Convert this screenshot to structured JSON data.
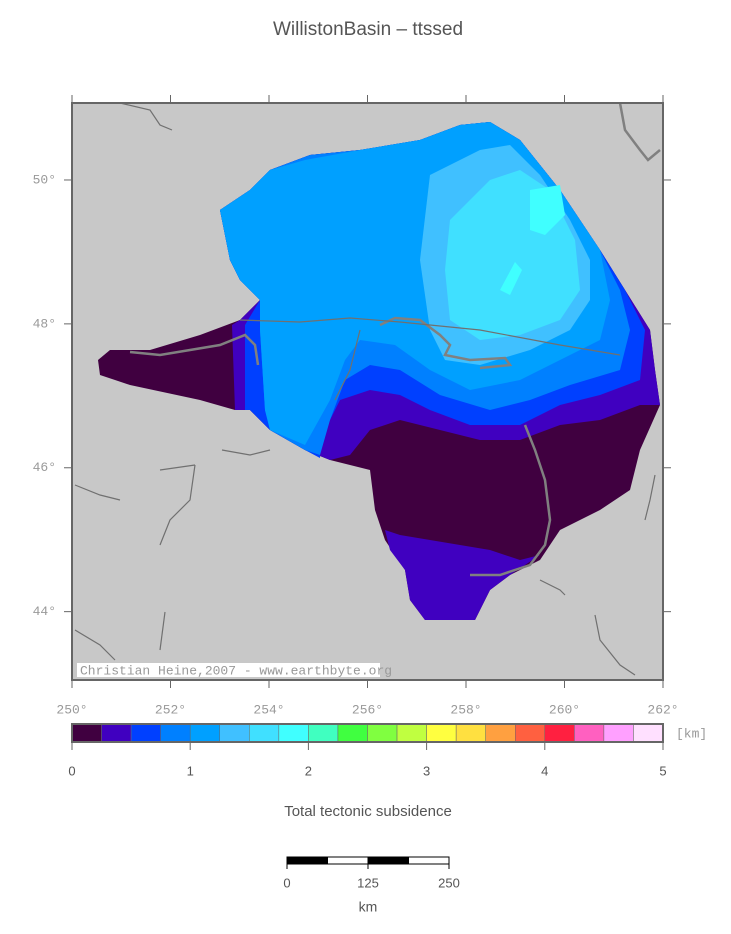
{
  "title": "WillistonBasin – ttssed",
  "map": {
    "lonlim": [
      250,
      262
    ],
    "latlim": [
      43.05,
      51.07
    ],
    "lon_ticks": [
      {
        "value": 250,
        "label": "250°"
      },
      {
        "value": 252,
        "label": "252°"
      },
      {
        "value": 254,
        "label": "254°"
      },
      {
        "value": 256,
        "label": "256°"
      },
      {
        "value": 258,
        "label": "258°"
      },
      {
        "value": 260,
        "label": "260°"
      },
      {
        "value": 262,
        "label": "262°"
      }
    ],
    "lat_ticks": [
      {
        "value": 44,
        "label": "44°"
      },
      {
        "value": 46,
        "label": "46°"
      },
      {
        "value": 48,
        "label": "48°"
      },
      {
        "value": 50,
        "label": "50°"
      }
    ],
    "credit": "Christian Heine,2007 - www.earthbyte.org"
  },
  "colorbar": {
    "range": [
      0,
      5
    ],
    "ticks": [
      0,
      1,
      2,
      3,
      4,
      5
    ],
    "unit": "[km]",
    "label": "Total tectonic subsidence",
    "colors": [
      "#400040",
      "#4000c0",
      "#0040ff",
      "#0080ff",
      "#00a0ff",
      "#40c0ff",
      "#40e0ff",
      "#40ffff",
      "#40ffc0",
      "#40ff40",
      "#80ff40",
      "#c0ff40",
      "#ffff40",
      "#ffe040",
      "#ffa040",
      "#ff6040",
      "#ff2040",
      "#ff60c0",
      "#ffa0ff",
      "#ffe0ff"
    ]
  },
  "scale_bar": {
    "range": [
      0,
      250
    ],
    "ticks": [
      0,
      125,
      250
    ],
    "segments": 4,
    "unit": "km"
  }
}
